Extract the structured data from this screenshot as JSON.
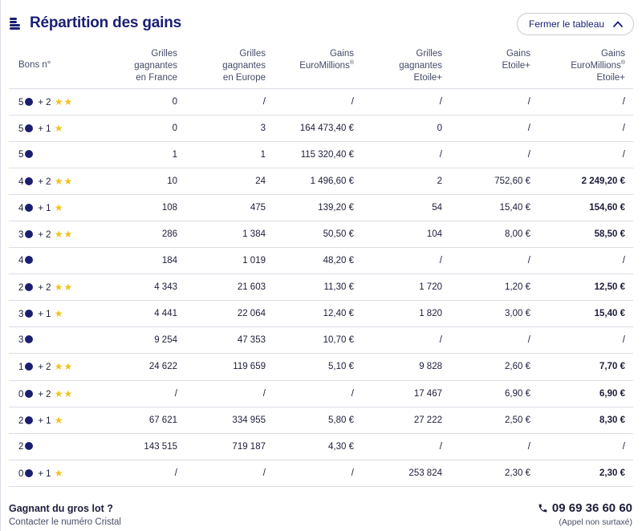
{
  "header": {
    "title": "Répartition des gains",
    "close_button": "Fermer le tableau"
  },
  "table": {
    "columns": [
      [
        "Bons n°"
      ],
      [
        "Grilles",
        "gagnantes",
        "en France"
      ],
      [
        "Grilles",
        "gagnantes",
        "en Europe"
      ],
      [
        "Gains",
        "EuroMillions®"
      ],
      [
        "Grilles",
        "gagnantes",
        "Etoile+"
      ],
      [
        "Gains",
        "Etoile+"
      ],
      [
        "Gains",
        "EuroMillions®",
        "Etoile+"
      ]
    ],
    "rows": [
      {
        "balls": "5",
        "stars": 2,
        "fr": "0",
        "eu": "/",
        "gain": "/",
        "ep": "/",
        "gep": "/",
        "total": "/"
      },
      {
        "balls": "5",
        "stars": 1,
        "fr": "0",
        "eu": "3",
        "gain": "164 473,40 €",
        "ep": "0",
        "gep": "/",
        "total": "/"
      },
      {
        "balls": "5",
        "stars": 0,
        "fr": "1",
        "eu": "1",
        "gain": "115 320,40 €",
        "ep": "/",
        "gep": "/",
        "total": "/"
      },
      {
        "balls": "4",
        "stars": 2,
        "fr": "10",
        "eu": "24",
        "gain": "1 496,60 €",
        "ep": "2",
        "gep": "752,60 €",
        "total": "2 249,20 €"
      },
      {
        "balls": "4",
        "stars": 1,
        "fr": "108",
        "eu": "475",
        "gain": "139,20 €",
        "ep": "54",
        "gep": "15,40 €",
        "total": "154,60 €"
      },
      {
        "balls": "3",
        "stars": 2,
        "fr": "286",
        "eu": "1 384",
        "gain": "50,50 €",
        "ep": "104",
        "gep": "8,00 €",
        "total": "58,50 €"
      },
      {
        "balls": "4",
        "stars": 0,
        "fr": "184",
        "eu": "1 019",
        "gain": "48,20 €",
        "ep": "/",
        "gep": "/",
        "total": "/"
      },
      {
        "balls": "2",
        "stars": 2,
        "fr": "4 343",
        "eu": "21 603",
        "gain": "11,30 €",
        "ep": "1 720",
        "gep": "1,20 €",
        "total": "12,50 €"
      },
      {
        "balls": "3",
        "stars": 1,
        "fr": "4 441",
        "eu": "22 064",
        "gain": "12,40 €",
        "ep": "1 820",
        "gep": "3,00 €",
        "total": "15,40 €"
      },
      {
        "balls": "3",
        "stars": 0,
        "fr": "9 254",
        "eu": "47 353",
        "gain": "10,70 €",
        "ep": "/",
        "gep": "/",
        "total": "/"
      },
      {
        "balls": "1",
        "stars": 2,
        "fr": "24 622",
        "eu": "119 659",
        "gain": "5,10 €",
        "ep": "9 828",
        "gep": "2,60 €",
        "total": "7,70 €"
      },
      {
        "balls": "0",
        "stars": 2,
        "fr": "/",
        "eu": "/",
        "gain": "/",
        "ep": "17 467",
        "gep": "6,90 €",
        "total": "6,90 €"
      },
      {
        "balls": "2",
        "stars": 1,
        "fr": "67 621",
        "eu": "334 955",
        "gain": "5,80 €",
        "ep": "27 222",
        "gep": "2,50 €",
        "total": "8,30 €"
      },
      {
        "balls": "2",
        "stars": 0,
        "fr": "143 515",
        "eu": "719 187",
        "gain": "4,30 €",
        "ep": "/",
        "gep": "/",
        "total": "/"
      },
      {
        "balls": "0",
        "stars": 1,
        "fr": "/",
        "eu": "/",
        "gain": "/",
        "ep": "253 824",
        "gep": "2,30 €",
        "total": "2,30 €"
      }
    ]
  },
  "footer": {
    "question": "Gagnant du gros lot ?",
    "subtext": "Contacter le numéro Cristal",
    "phone": "09 69 36 60 60",
    "phone_note": "(Appel non surtaxé)"
  },
  "colors": {
    "brand": "#1a1f71",
    "star": "#f2c216"
  }
}
